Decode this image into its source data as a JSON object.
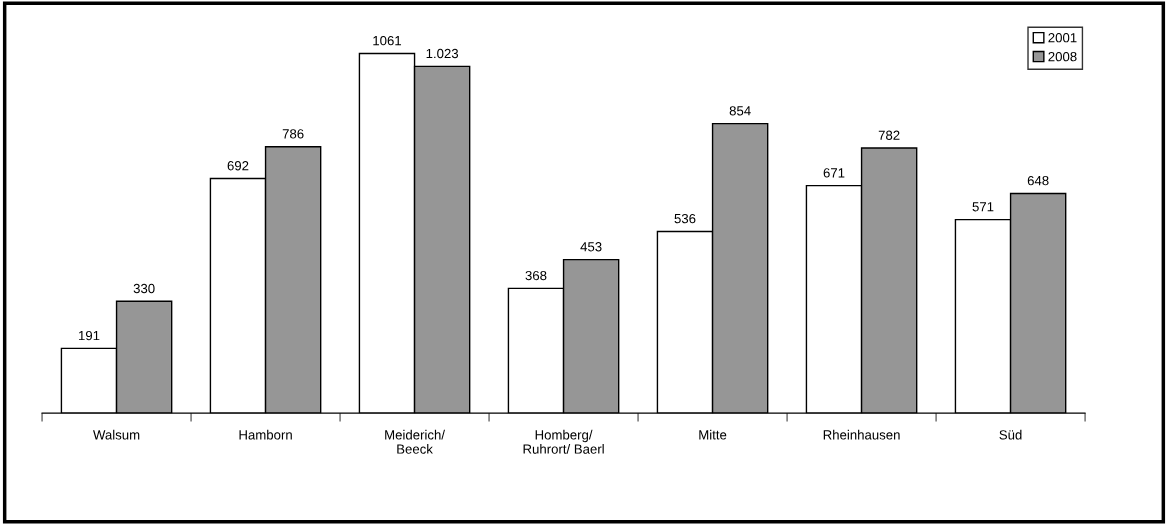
{
  "chart_data": {
    "type": "bar",
    "categories": [
      "Walsum",
      "Hamborn",
      "Meiderich/\nBeeck",
      "Homberg/\nRuhrort/ Baerl",
      "Mitte",
      "Rheinhausen",
      "Süd"
    ],
    "series": [
      {
        "name": "2001",
        "color": "#ffffff",
        "values": [
          191,
          692,
          1061,
          368,
          536,
          671,
          571
        ],
        "value_labels": [
          "191",
          "692",
          "1061",
          "368",
          "536",
          "671",
          "571"
        ]
      },
      {
        "name": "2008",
        "color": "#969696",
        "values": [
          330,
          786,
          1023,
          453,
          854,
          782,
          648
        ],
        "value_labels": [
          "330",
          "786",
          "1.023",
          "453",
          "854",
          "782",
          "648"
        ]
      }
    ],
    "legend": "top right",
    "grid": false
  }
}
